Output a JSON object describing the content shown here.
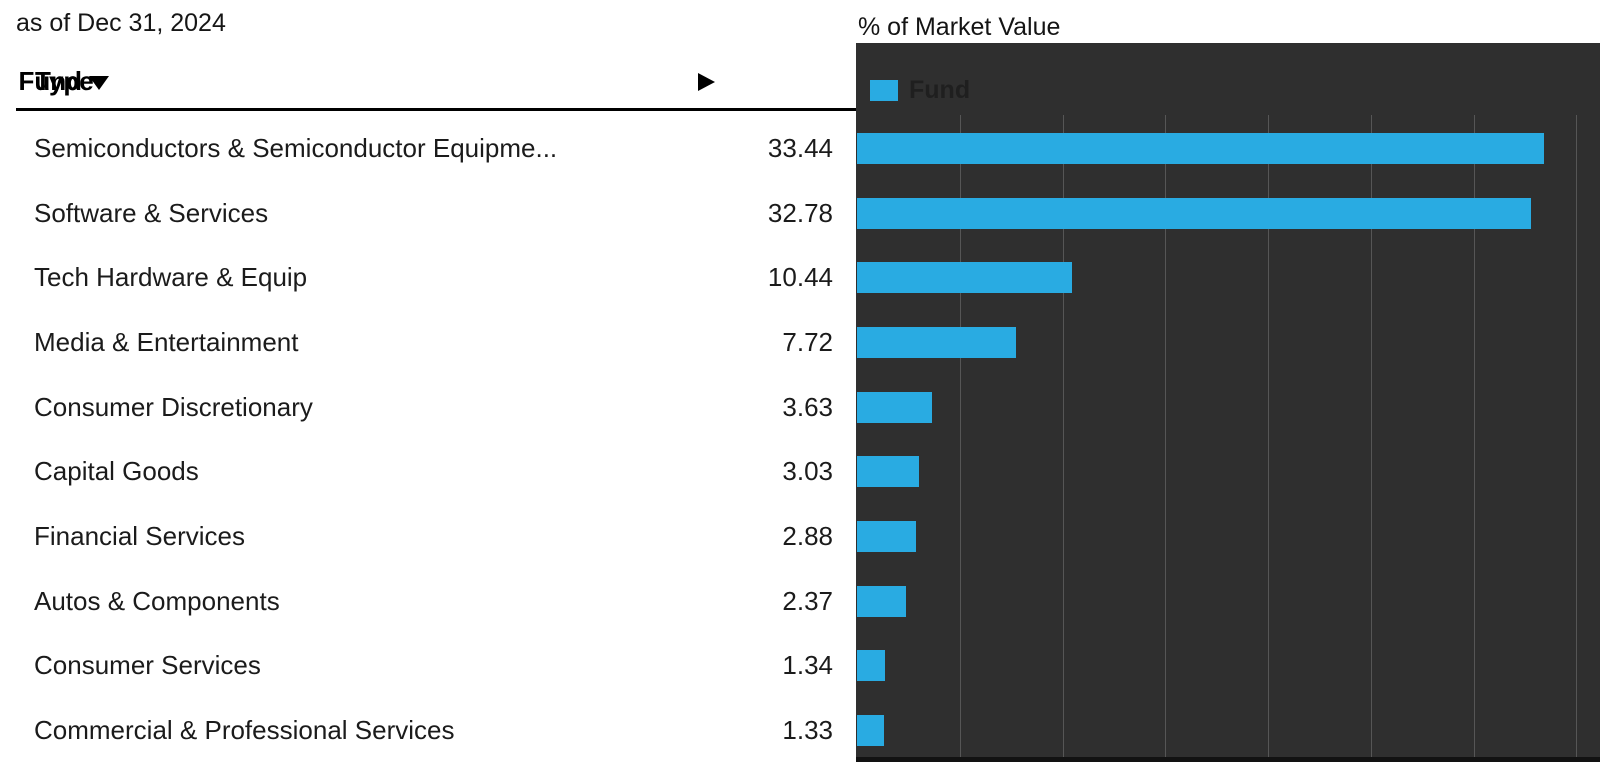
{
  "header": {
    "as_of": "as of Dec 31, 2024"
  },
  "table": {
    "columns": {
      "type": "Type",
      "fund": "Fund"
    },
    "sort": {
      "column": "Fund",
      "direction": "descending"
    },
    "rows": [
      {
        "type": "Semiconductors & Semiconductor Equipme...",
        "fund": "33.44"
      },
      {
        "type": "Software & Services",
        "fund": "32.78"
      },
      {
        "type": "Tech Hardware & Equip",
        "fund": "10.44"
      },
      {
        "type": "Media & Entertainment",
        "fund": "7.72"
      },
      {
        "type": "Consumer Discretionary",
        "fund": "3.63"
      },
      {
        "type": "Capital Goods",
        "fund": "3.03"
      },
      {
        "type": "Financial Services",
        "fund": "2.88"
      },
      {
        "type": "Autos & Components",
        "fund": "2.37"
      },
      {
        "type": "Consumer Services",
        "fund": "1.34"
      },
      {
        "type": "Commercial & Professional Services",
        "fund": "1.33"
      }
    ]
  },
  "chart_data": {
    "type": "bar",
    "orientation": "horizontal",
    "title": "% of Market Value",
    "legend_label": "Fund",
    "legend_position": "top-left",
    "categories": [
      "Semiconductors & Semiconductor Equipme...",
      "Software & Services",
      "Tech Hardware & Equip",
      "Media & Entertainment",
      "Consumer Discretionary",
      "Capital Goods",
      "Financial Services",
      "Autos & Components",
      "Consumer Services",
      "Commercial & Professional Services"
    ],
    "values": [
      33.44,
      32.78,
      10.44,
      7.72,
      3.63,
      3.03,
      2.88,
      2.37,
      1.34,
      1.33
    ],
    "xlim": [
      0,
      36.2
    ],
    "gridline_interval": 5,
    "grid": true,
    "axis_tick_labels_visible": false,
    "colors": {
      "bar": "#29abe2",
      "panel_bg": "#2f2f2f",
      "gridline": "#565656",
      "legend_text": "#1f1f1f",
      "baseline": "#121212"
    }
  }
}
